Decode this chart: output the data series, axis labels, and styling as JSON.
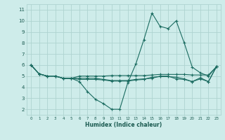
{
  "bg_color": "#ceecea",
  "grid_color": "#aed4d0",
  "line_color": "#1a6b60",
  "xlabel": "Humidex (Indice chaleur)",
  "xlim": [
    -0.5,
    23.5
  ],
  "ylim": [
    1.5,
    11.5
  ],
  "xticks": [
    0,
    1,
    2,
    3,
    4,
    5,
    6,
    7,
    8,
    9,
    10,
    11,
    12,
    13,
    14,
    15,
    16,
    17,
    18,
    19,
    20,
    21,
    22,
    23
  ],
  "yticks": [
    2,
    3,
    4,
    5,
    6,
    7,
    8,
    9,
    10,
    11
  ],
  "line1_x": [
    0,
    1,
    2,
    3,
    4,
    5,
    6,
    7,
    8,
    9,
    10,
    11,
    12,
    13,
    14,
    15,
    16,
    17,
    18,
    19,
    20,
    21,
    22,
    23
  ],
  "line1_y": [
    6.0,
    5.2,
    5.0,
    5.0,
    4.8,
    4.8,
    4.5,
    3.6,
    2.9,
    2.5,
    2.0,
    2.0,
    4.4,
    6.1,
    8.3,
    10.7,
    9.5,
    9.3,
    10.0,
    8.0,
    5.8,
    5.3,
    5.0,
    5.85
  ],
  "line2_x": [
    0,
    1,
    2,
    3,
    4,
    5,
    6,
    7,
    8,
    9,
    10,
    11,
    12,
    13,
    14,
    15,
    16,
    17,
    18,
    19,
    20,
    21,
    22,
    23
  ],
  "line2_y": [
    6.0,
    5.2,
    5.0,
    5.0,
    4.8,
    4.8,
    5.0,
    5.0,
    5.0,
    5.0,
    5.05,
    5.05,
    5.05,
    5.05,
    5.05,
    5.1,
    5.15,
    5.15,
    5.15,
    5.15,
    5.1,
    5.1,
    5.1,
    5.85
  ],
  "line3_x": [
    0,
    1,
    2,
    3,
    4,
    5,
    6,
    7,
    8,
    9,
    10,
    11,
    12,
    13,
    14,
    15,
    16,
    17,
    18,
    19,
    20,
    21,
    22,
    23
  ],
  "line3_y": [
    6.0,
    5.2,
    5.0,
    5.0,
    4.8,
    4.8,
    4.8,
    4.8,
    4.8,
    4.7,
    4.6,
    4.6,
    4.6,
    4.7,
    4.75,
    4.8,
    5.0,
    5.0,
    4.75,
    4.7,
    4.5,
    4.85,
    4.5,
    5.85
  ],
  "line4_x": [
    0,
    1,
    2,
    3,
    4,
    5,
    6,
    7,
    8,
    9,
    10,
    11,
    12,
    13,
    14,
    15,
    16,
    17,
    18,
    19,
    20,
    21,
    22,
    23
  ],
  "line4_y": [
    6.0,
    5.2,
    5.0,
    5.0,
    4.8,
    4.8,
    4.7,
    4.7,
    4.7,
    4.65,
    4.55,
    4.55,
    4.55,
    4.65,
    4.7,
    4.9,
    4.95,
    4.95,
    4.9,
    4.75,
    4.5,
    4.75,
    4.5,
    5.85
  ]
}
